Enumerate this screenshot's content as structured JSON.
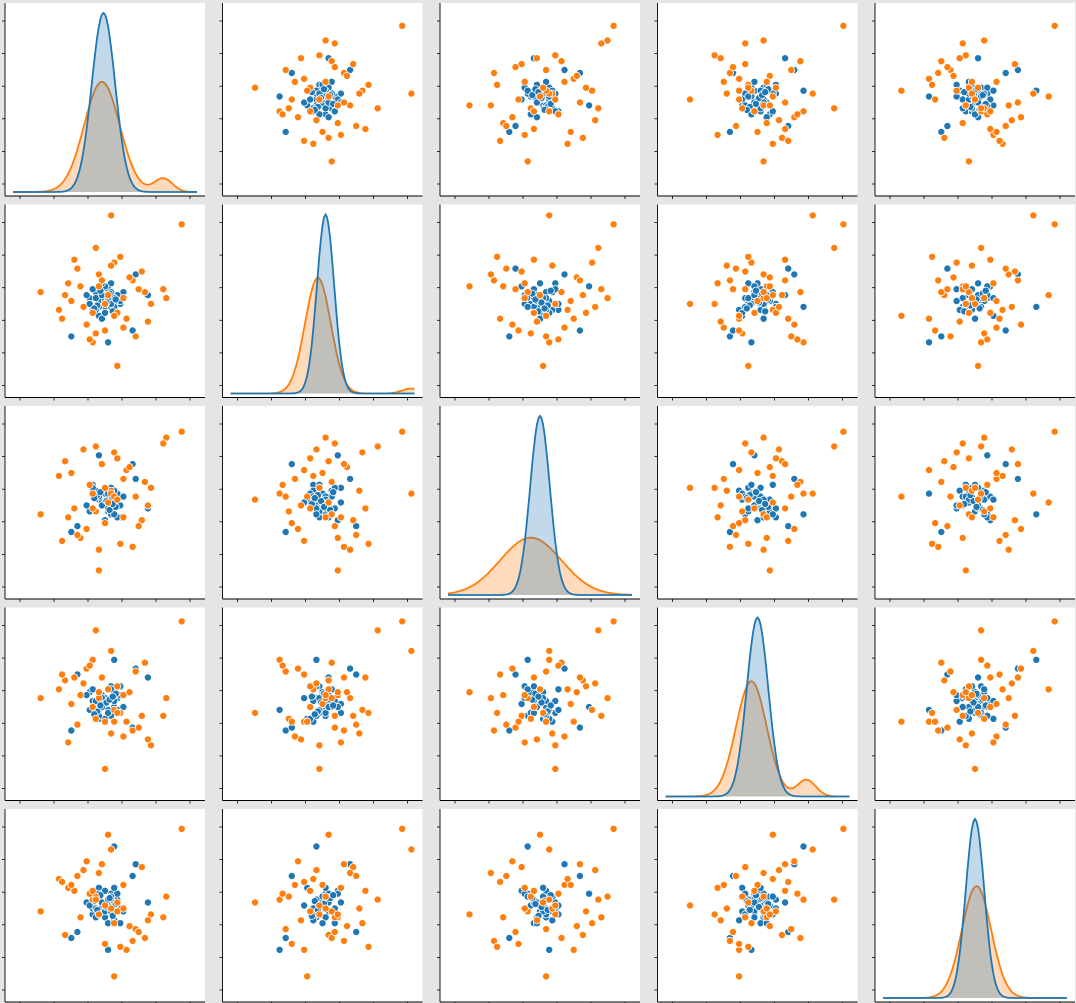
{
  "chart_data": {
    "type": "scatter",
    "kind": "pairplot",
    "grid": "5x5",
    "diagonal": "kde",
    "axis_range": [
      -3,
      3
    ],
    "series": [
      {
        "key": "blue",
        "color": "#1f77b4"
      },
      {
        "key": "orange",
        "color": "#ff7f0e"
      }
    ],
    "kde_diagonals": [
      {
        "blue": {
          "mean": -0.05,
          "sd": 0.38
        },
        "orange": {
          "mean": -0.1,
          "sd": 0.58,
          "tail_mean": 1.9,
          "tail_weight": 0.06
        }
      },
      {
        "blue": {
          "mean": 0.1,
          "sd": 0.28
        },
        "orange": {
          "mean": -0.15,
          "sd": 0.42,
          "tail_mean": 2.9,
          "tail_weight": 0.03
        }
      },
      {
        "blue": {
          "mean": 0.0,
          "sd": 0.32
        },
        "orange": {
          "mean": -0.3,
          "sd": 1.0
        }
      },
      {
        "blue": {
          "mean": 0.0,
          "sd": 0.35
        },
        "orange": {
          "mean": -0.2,
          "sd": 0.5,
          "tail_mean": 1.6,
          "tail_weight": 0.08
        }
      },
      {
        "blue": {
          "mean": 0.0,
          "sd": 0.3
        },
        "orange": {
          "mean": 0.05,
          "sd": 0.48
        }
      }
    ],
    "points": {
      "blue": [
        [
          -0.1,
          0.2,
          0.0,
          0.3,
          -0.2
        ],
        [
          0.3,
          -0.4,
          0.2,
          -0.1,
          0.5
        ],
        [
          -0.5,
          0.1,
          -0.3,
          0.4,
          0.0
        ],
        [
          0.2,
          0.6,
          0.5,
          -0.3,
          0.1
        ],
        [
          0.0,
          -0.2,
          -0.1,
          0.2,
          -0.4
        ],
        [
          -0.3,
          0.3,
          0.4,
          0.0,
          0.3
        ],
        [
          0.5,
          -0.1,
          -0.5,
          0.6,
          -0.1
        ],
        [
          -0.2,
          -0.5,
          0.1,
          -0.5,
          0.6
        ],
        [
          0.1,
          0.4,
          -0.2,
          0.1,
          -0.6
        ],
        [
          0.4,
          0.0,
          0.3,
          -0.2,
          0.2
        ],
        [
          -0.4,
          -0.3,
          0.6,
          0.5,
          -0.3
        ],
        [
          0.2,
          0.1,
          -0.4,
          -0.4,
          0.4
        ],
        [
          -0.1,
          -0.6,
          0.0,
          0.2,
          0.0
        ],
        [
          0.6,
          0.3,
          0.2,
          -0.1,
          -0.2
        ],
        [
          -0.6,
          0.2,
          -0.1,
          0.3,
          0.1
        ],
        [
          0.0,
          0.5,
          -0.6,
          0.0,
          0.5
        ],
        [
          0.3,
          -0.3,
          0.4,
          -0.6,
          -0.5
        ],
        [
          -0.2,
          0.0,
          0.1,
          0.4,
          0.3
        ],
        [
          0.1,
          -0.1,
          -0.3,
          -0.3,
          0.0
        ],
        [
          -0.4,
          0.4,
          0.5,
          0.1,
          -0.1
        ],
        [
          0.2,
          -0.2,
          -0.2,
          0.6,
          0.2
        ],
        [
          -0.3,
          0.1,
          0.2,
          -0.1,
          -0.4
        ],
        [
          0.4,
          0.2,
          -0.5,
          0.2,
          0.4
        ],
        [
          0.0,
          -0.4,
          0.3,
          -0.5,
          -0.2
        ],
        [
          -0.1,
          0.6,
          0.0,
          0.0,
          0.1
        ],
        [
          0.5,
          0.0,
          -0.1,
          0.3,
          -0.6
        ],
        [
          -0.5,
          -0.1,
          0.6,
          -0.2,
          0.0
        ],
        [
          0.2,
          0.3,
          -0.4,
          0.5,
          0.3
        ],
        [
          -0.2,
          -0.2,
          0.2,
          -0.4,
          -0.3
        ],
        [
          0.3,
          0.1,
          0.1,
          0.1,
          0.6
        ],
        [
          1.0,
          0.9,
          0.8,
          1.2,
          1.4
        ],
        [
          -1.1,
          -1.2,
          -1.0,
          -0.9,
          -1.1
        ],
        [
          0.9,
          -1.0,
          1.3,
          -0.8,
          1.0
        ],
        [
          -0.9,
          1.1,
          -0.8,
          1.0,
          -0.9
        ],
        [
          1.4,
          0.2,
          -0.2,
          0.9,
          0.1
        ],
        [
          0.1,
          -1.4,
          0.3,
          -0.2,
          -1.5
        ],
        [
          -0.2,
          0.5,
          1.6,
          -0.1,
          0.4
        ],
        [
          0.3,
          -0.2,
          -0.4,
          1.5,
          2.0
        ],
        [
          0.0,
          0.0,
          0.0,
          0.0,
          0.0
        ],
        [
          -0.3,
          -0.3,
          0.2,
          0.1,
          -0.1
        ],
        [
          0.1,
          0.1,
          -0.2,
          -0.3,
          0.2
        ],
        [
          0.2,
          -0.1,
          0.1,
          0.2,
          -0.2
        ],
        [
          -0.1,
          0.2,
          -0.1,
          -0.1,
          0.1
        ],
        [
          0.05,
          -0.05,
          0.05,
          0.05,
          -0.05
        ],
        [
          0.15,
          0.25,
          -0.25,
          0.15,
          0.25
        ],
        [
          -0.25,
          -0.15,
          0.25,
          -0.25,
          -0.15
        ],
        [
          0.35,
          0.05,
          -0.15,
          0.35,
          0.05
        ],
        [
          -0.15,
          0.35,
          0.35,
          -0.05,
          0.35
        ],
        [
          0.25,
          -0.35,
          -0.05,
          0.25,
          -0.35
        ],
        [
          -0.35,
          -0.25,
          0.15,
          -0.35,
          0.15
        ]
      ],
      "orange": [
        [
          -0.8,
          0.5,
          -1.2,
          0.3,
          -0.4
        ],
        [
          0.6,
          -0.9,
          0.8,
          -1.1,
          0.7
        ],
        [
          -1.3,
          0.2,
          1.4,
          0.8,
          -1.0
        ],
        [
          1.2,
          1.0,
          -0.6,
          -0.4,
          1.3
        ],
        [
          -0.4,
          -1.4,
          0.3,
          1.5,
          0.2
        ],
        [
          0.9,
          0.7,
          -1.5,
          -0.9,
          -1.2
        ],
        [
          -1.5,
          -0.3,
          0.9,
          0.5,
          0.9
        ],
        [
          0.3,
          1.3,
          1.7,
          -0.2,
          -0.6
        ],
        [
          -0.6,
          -0.8,
          -0.9,
          1.2,
          1.5
        ],
        [
          1.5,
          -0.1,
          0.5,
          -1.4,
          -0.3
        ],
        [
          -1.0,
          1.4,
          -0.2,
          0.9,
          0.5
        ],
        [
          0.7,
          -0.6,
          1.1,
          -0.6,
          -1.5
        ],
        [
          -0.2,
          0.9,
          -1.6,
          0.2,
          1.1
        ],
        [
          1.0,
          -1.2,
          0.2,
          1.1,
          -0.8
        ],
        [
          -1.2,
          0.6,
          -0.5,
          -1.3,
          0.6
        ],
        [
          0.4,
          -0.4,
          1.5,
          0.6,
          -0.2
        ],
        [
          -0.9,
          1.1,
          -1.1,
          -0.7,
          1.0
        ],
        [
          1.3,
          0.3,
          0.7,
          1.4,
          -1.1
        ],
        [
          -0.3,
          -1.1,
          -0.3,
          -0.5,
          0.3
        ],
        [
          0.8,
          0.8,
          1.2,
          0.4,
          -0.7
        ],
        [
          -1.4,
          -0.6,
          -1.3,
          1.0,
          0.8
        ],
        [
          0.2,
          1.2,
          0.4,
          -1.0,
          -0.1
        ],
        [
          -0.7,
          -0.2,
          1.8,
          0.7,
          1.2
        ],
        [
          1.1,
          0.4,
          -0.8,
          -0.8,
          -0.9
        ],
        [
          -0.5,
          -1.3,
          0.6,
          1.3,
          0.4
        ],
        [
          0.5,
          1.5,
          -1.4,
          -0.3,
          -1.4
        ],
        [
          -1.1,
          0.0,
          1.0,
          0.0,
          0.7
        ],
        [
          1.4,
          -0.7,
          -0.1,
          -1.2,
          -0.5
        ],
        [
          -0.1,
          0.7,
          1.3,
          0.9,
          1.4
        ],
        [
          0.0,
          -1.0,
          -0.7,
          -0.6,
          -1.3
        ],
        [
          2.0,
          0.1,
          2.2,
          0.2,
          0.3
        ],
        [
          1.9,
          0.4,
          2.0,
          -0.4,
          -0.4
        ],
        [
          0.2,
          2.9,
          0.3,
          1.8,
          1.9
        ],
        [
          -0.3,
          1.8,
          1.9,
          2.5,
          0.2
        ],
        [
          0.1,
          0.2,
          0.0,
          0.5,
          2.4
        ],
        [
          0.3,
          -0.5,
          0.2,
          -0.6,
          -2.4
        ],
        [
          -2.1,
          0.3,
          -0.4,
          0.2,
          -0.2
        ],
        [
          0.4,
          -2.2,
          0.1,
          -0.3,
          0.1
        ],
        [
          -0.2,
          0.5,
          -2.3,
          0.4,
          -0.3
        ],
        [
          0.0,
          -0.1,
          0.5,
          -2.2,
          0.0
        ],
        [
          2.5,
          2.6,
          2.4,
          2.8,
          2.6
        ],
        [
          -0.4,
          -0.4,
          -0.2,
          -0.1,
          0.5
        ],
        [
          0.6,
          0.1,
          -0.5,
          0.3,
          -0.1
        ]
      ]
    }
  }
}
